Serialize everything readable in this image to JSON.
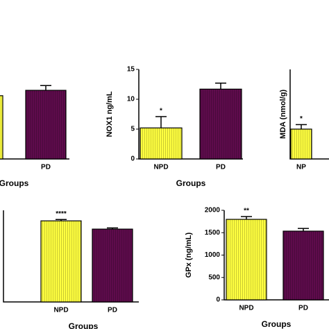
{
  "chart_data": [
    {
      "type": "bar",
      "xlabel": "Groups",
      "categories": [
        null,
        "PD"
      ],
      "values": [
        10.6,
        11.5
      ],
      "errors": [
        0.6,
        0.8
      ],
      "annotations": [
        null,
        null
      ],
      "colors": [
        "#ffff40",
        "#5e0b4c"
      ],
      "ylim": [
        0,
        15
      ]
    },
    {
      "type": "bar",
      "ylabel": "NOX1 ng/mL",
      "xlabel": "Groups",
      "categories": [
        "NPD",
        "PD"
      ],
      "values": [
        5.2,
        11.7
      ],
      "errors": [
        1.9,
        1.0
      ],
      "annotations": [
        "*",
        null
      ],
      "colors": [
        "#ffff40",
        "#5e0b4c"
      ],
      "ylim": [
        0,
        15
      ],
      "yticks": [
        0,
        5,
        10,
        15
      ]
    },
    {
      "type": "bar",
      "ylabel": "MDA (nmol/g)",
      "categories": [
        "NP"
      ],
      "values": [
        1.0
      ],
      "errors": [
        0.15
      ],
      "annotations": [
        "*"
      ],
      "colors": [
        "#ffff40"
      ],
      "ylim": [
        0,
        3
      ]
    },
    {
      "type": "bar",
      "xlabel": "Groups",
      "categories": [
        "NPD",
        "PD"
      ],
      "values": [
        1770,
        1590
      ],
      "errors": [
        30,
        25
      ],
      "annotations": [
        "****",
        null
      ],
      "colors": [
        "#ffff40",
        "#5e0b4c"
      ],
      "ylim": [
        0,
        2000
      ]
    },
    {
      "type": "bar",
      "ylabel": "GPx (ng/mL)",
      "xlabel": "Groups",
      "categories": [
        "NPD",
        "PD"
      ],
      "values": [
        1798,
        1535
      ],
      "errors": [
        62,
        60
      ],
      "annotations": [
        "**",
        null
      ],
      "colors": [
        "#ffff40",
        "#5e0b4c"
      ],
      "ylim": [
        0,
        2000
      ],
      "yticks": [
        0,
        500,
        1000,
        1500,
        2000
      ]
    }
  ]
}
